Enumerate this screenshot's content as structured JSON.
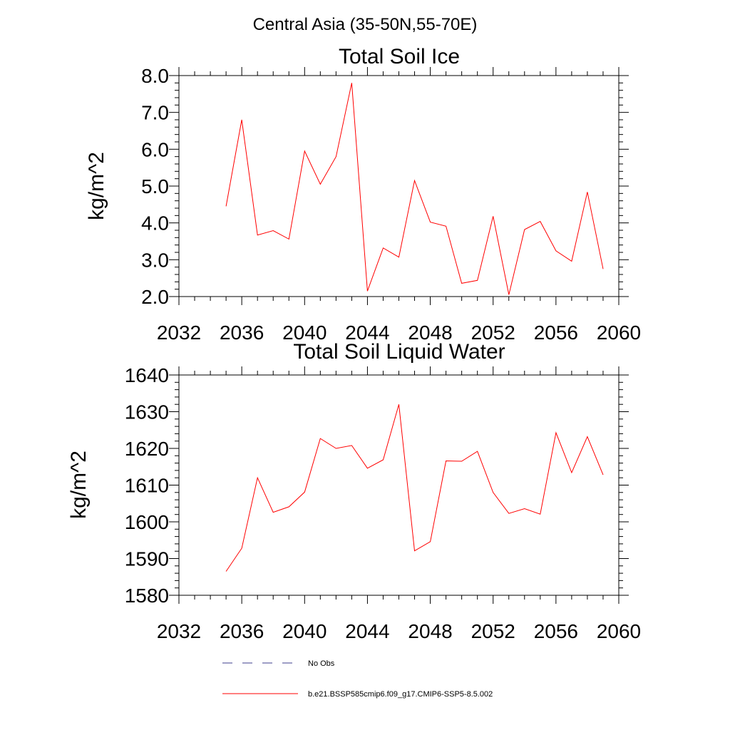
{
  "figure": {
    "suptitle": "Central Asia (35-50N,55-70E)",
    "legend": [
      {
        "label": "No Obs",
        "color": "#3c3c8c",
        "dash": "dashed"
      },
      {
        "label": "b.e21.BSSP585cmip6.f09_g17.CMIP6-SSP5-8.5.002",
        "color": "#ff0000",
        "dash": "solid"
      }
    ],
    "legend_placement": "bottom-center"
  },
  "chart_data": [
    {
      "type": "line",
      "title": "Total Soil Ice",
      "xlabel": "",
      "ylabel": "kg/m^2",
      "xlim": [
        2032,
        2060
      ],
      "ylim": [
        2.0,
        8.0
      ],
      "xticks": [
        "2032",
        "2036",
        "2040",
        "2044",
        "2048",
        "2052",
        "2056",
        "2060"
      ],
      "yticks": [
        "2.0",
        "3.0",
        "4.0",
        "5.0",
        "6.0",
        "7.0",
        "8.0"
      ],
      "grid": false,
      "series": [
        {
          "name": "b.e21.BSSP585cmip6.f09_g17.CMIP6-SSP5-8.5.002",
          "color": "#ff0000",
          "x": [
            2035,
            2036,
            2037,
            2038,
            2039,
            2040,
            2041,
            2042,
            2043,
            2044,
            2045,
            2046,
            2047,
            2048,
            2049,
            2050,
            2051,
            2052,
            2053,
            2054,
            2055,
            2056,
            2057,
            2058,
            2059
          ],
          "y": [
            4.45,
            6.8,
            3.67,
            3.79,
            3.56,
            5.95,
            5.05,
            5.8,
            7.8,
            2.15,
            3.32,
            3.07,
            5.15,
            4.02,
            3.91,
            2.36,
            2.44,
            4.18,
            2.05,
            3.82,
            4.04,
            3.24,
            2.96,
            4.84,
            2.75
          ]
        }
      ]
    },
    {
      "type": "line",
      "title": "Total Soil Liquid Water",
      "xlabel": "",
      "ylabel": "kg/m^2",
      "xlim": [
        2032,
        2060
      ],
      "ylim": [
        1580,
        1640
      ],
      "xticks": [
        "2032",
        "2036",
        "2040",
        "2044",
        "2048",
        "2052",
        "2056",
        "2060"
      ],
      "yticks": [
        "1580",
        "1590",
        "1600",
        "1610",
        "1620",
        "1630",
        "1640"
      ],
      "grid": false,
      "series": [
        {
          "name": "b.e21.BSSP585cmip6.f09_g17.CMIP6-SSP5-8.5.002",
          "color": "#ff0000",
          "x": [
            2035,
            2036,
            2037,
            2038,
            2039,
            2040,
            2041,
            2042,
            2043,
            2044,
            2045,
            2046,
            2047,
            2048,
            2049,
            2050,
            2051,
            2052,
            2053,
            2054,
            2055,
            2056,
            2057,
            2058,
            2059
          ],
          "y": [
            1586.5,
            1592.8,
            1612.0,
            1602.6,
            1604.1,
            1608.1,
            1622.7,
            1620.0,
            1620.8,
            1614.6,
            1616.9,
            1632.0,
            1592.1,
            1594.6,
            1616.6,
            1616.5,
            1619.2,
            1608.0,
            1602.3,
            1603.6,
            1602.1,
            1624.3,
            1613.4,
            1623.2,
            1612.8
          ]
        }
      ]
    }
  ]
}
